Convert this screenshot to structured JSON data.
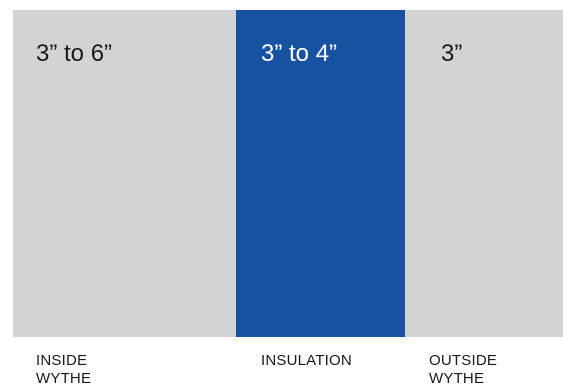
{
  "colors": {
    "wythe_fill": "#d2d3d5",
    "insulation_fill": "#1652a0",
    "wythe_text": "#1a1a1a",
    "insulation_text": "#ffffff",
    "caption_text": "#1a1a1a"
  },
  "layers": [
    {
      "id": "inside",
      "thickness": "3” to 6”",
      "caption_line1": "INSIDE",
      "caption_line2": "WYTHE"
    },
    {
      "id": "insulation",
      "thickness": "3” to 4”",
      "caption_line1": "INSULATION",
      "caption_line2": ""
    },
    {
      "id": "outside",
      "thickness": "3”",
      "caption_line1": "OUTSIDE",
      "caption_line2": "WYTHE"
    }
  ]
}
